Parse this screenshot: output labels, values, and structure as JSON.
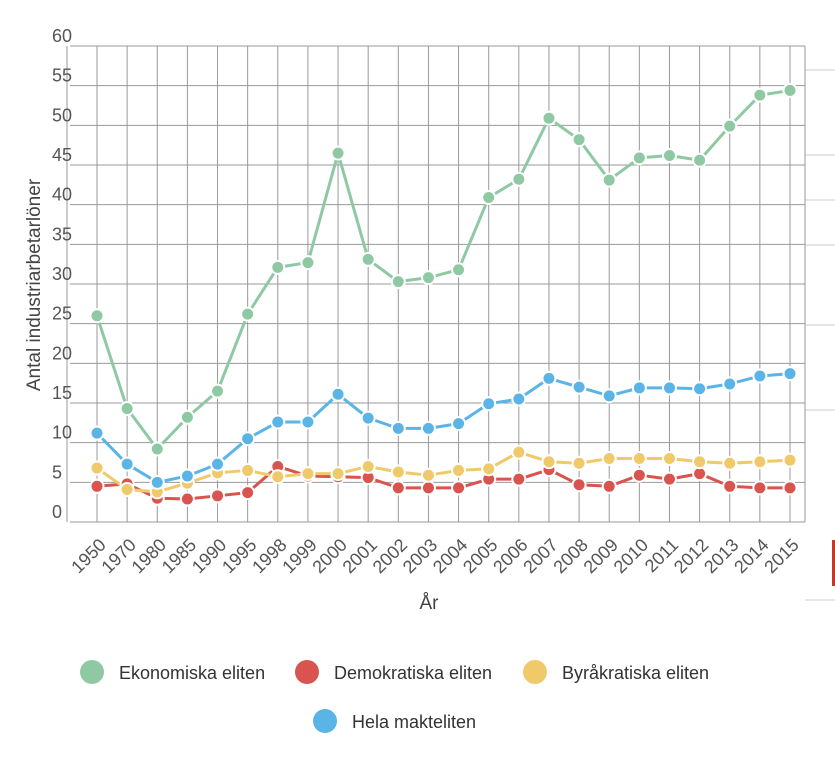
{
  "chart_data": {
    "type": "line",
    "title": "",
    "xlabel": "År",
    "ylabel": "Antal industriarbetarlöner",
    "ylim": [
      0,
      60
    ],
    "yticks": [
      0,
      5,
      10,
      15,
      20,
      25,
      30,
      35,
      40,
      45,
      50,
      55,
      60
    ],
    "categories": [
      "1950",
      "1970",
      "1980",
      "1985",
      "1990",
      "1995",
      "1998",
      "1999",
      "2000",
      "2001",
      "2002",
      "2003",
      "2004",
      "2005",
      "2006",
      "2007",
      "2008",
      "2009",
      "2010",
      "2011",
      "2012",
      "2013",
      "2014",
      "2015"
    ],
    "grid": true,
    "legend_position": "bottom",
    "series": [
      {
        "name": "Ekonomiska eliten",
        "color": "#8fc9a3",
        "values": [
          26,
          14.3,
          9.2,
          13.2,
          16.5,
          26.2,
          32.1,
          32.7,
          46.5,
          33.1,
          30.3,
          30.8,
          31.8,
          40.9,
          43.2,
          50.9,
          48.2,
          43.1,
          45.9,
          46.2,
          45.6,
          49.9,
          53.8,
          54.4
        ]
      },
      {
        "name": "Demokratiska eliten",
        "color": "#d9534f",
        "values": [
          4.5,
          4.8,
          3.0,
          2.9,
          3.3,
          3.7,
          7.0,
          5.8,
          5.7,
          5.6,
          4.3,
          4.3,
          4.3,
          5.4,
          5.4,
          6.6,
          4.7,
          4.5,
          5.9,
          5.4,
          6.1,
          4.5,
          4.3,
          4.3
        ]
      },
      {
        "name": "Byråkratiska eliten",
        "color": "#efc96a",
        "values": [
          6.8,
          4.1,
          3.8,
          4.9,
          6.2,
          6.5,
          5.7,
          6.1,
          6.1,
          7.0,
          6.3,
          5.9,
          6.5,
          6.7,
          8.8,
          7.6,
          7.4,
          8.0,
          8.0,
          8.0,
          7.6,
          7.4,
          7.6,
          7.8
        ]
      },
      {
        "name": "Hela makteliten",
        "color": "#5ab4e5",
        "values": [
          11.2,
          7.3,
          5.0,
          5.8,
          7.3,
          10.5,
          12.6,
          12.6,
          16.1,
          13.1,
          11.8,
          11.8,
          12.4,
          14.9,
          15.5,
          18.1,
          17.0,
          15.9,
          16.9,
          16.9,
          16.8,
          17.4,
          18.4,
          18.7
        ]
      }
    ],
    "legend": [
      "Ekonomiska eliten",
      "Demokratiska eliten",
      "Byråkratiska eliten",
      "Hela makteliten"
    ]
  }
}
